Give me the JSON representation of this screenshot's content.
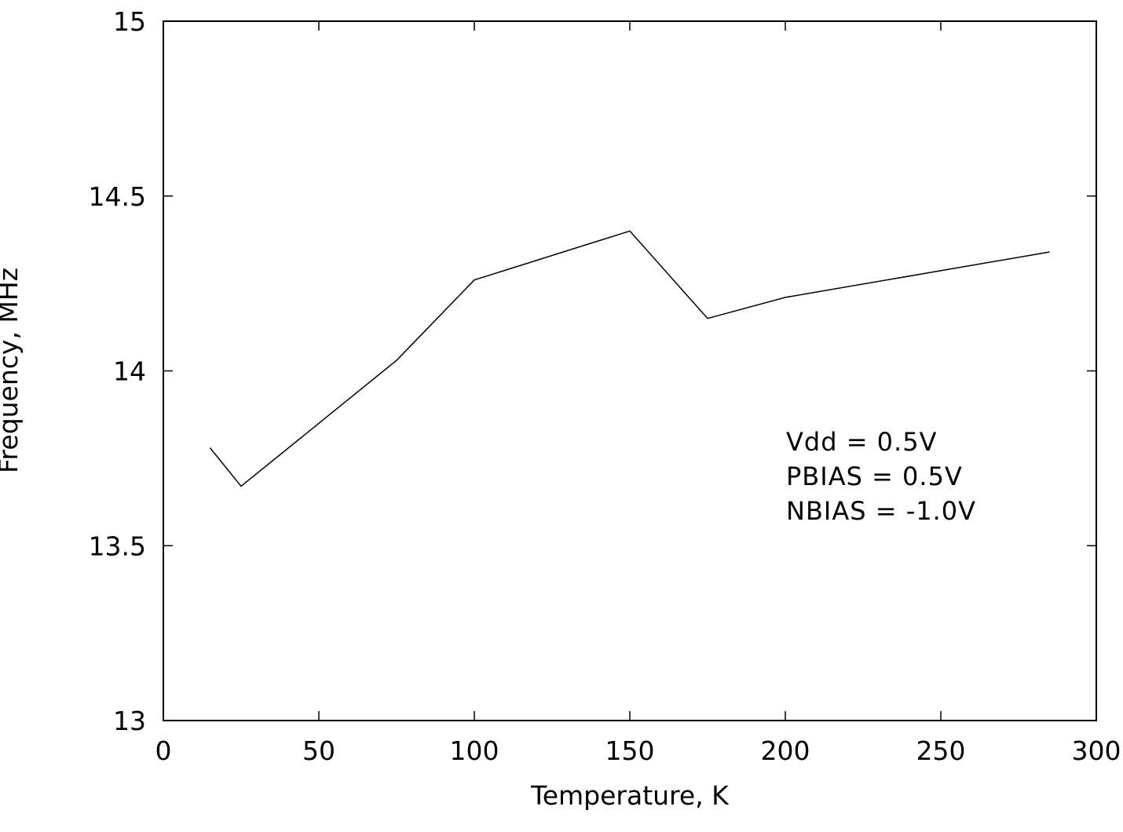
{
  "chart_data": {
    "type": "line",
    "title": "",
    "xlabel": "Temperature, K",
    "ylabel": "Frequency, MHz",
    "xlim": [
      0,
      300
    ],
    "ylim": [
      13,
      15
    ],
    "xticks": [
      0,
      50,
      100,
      150,
      200,
      250,
      300
    ],
    "yticks": [
      13,
      13.5,
      14,
      14.5,
      15
    ],
    "xtick_labels": [
      "0",
      "50",
      "100",
      "150",
      "200",
      "250",
      "300"
    ],
    "ytick_labels": [
      "13",
      "13.5",
      "14",
      "14.5",
      "15"
    ],
    "grid": false,
    "legend": "none",
    "series": [
      {
        "x": [
          15,
          25,
          75,
          100,
          150,
          175,
          200,
          285
        ],
        "y": [
          13.78,
          13.67,
          14.03,
          14.26,
          14.4,
          14.15,
          14.21,
          14.34
        ]
      }
    ],
    "annotations": [
      "Vdd = 0.5V",
      "PBIAS = 0.5V",
      "NBIAS = -1.0V"
    ]
  }
}
